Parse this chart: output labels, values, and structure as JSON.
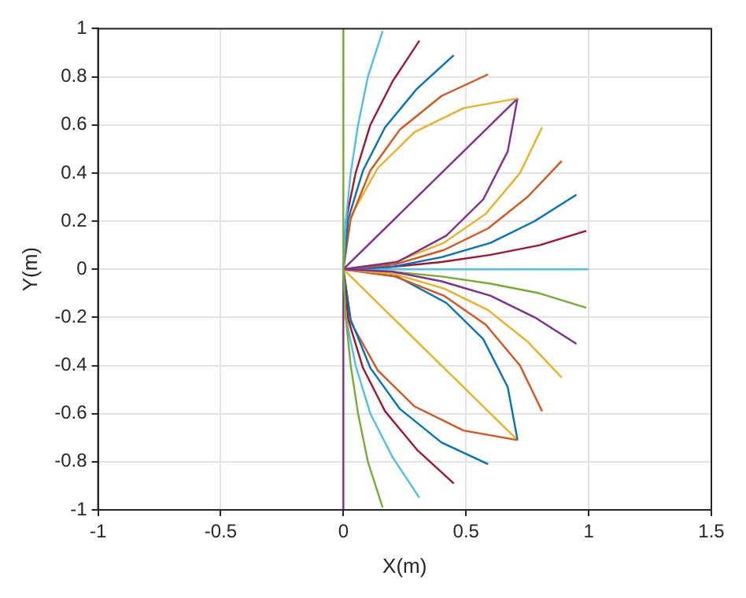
{
  "chart_data": {
    "type": "line",
    "xlabel": "X(m)",
    "ylabel": "Y(m)",
    "xlim": [
      -1,
      1.5
    ],
    "xticks": [
      -1,
      -0.5,
      0,
      0.5,
      1,
      1.5
    ],
    "ylim": [
      -1,
      1
    ],
    "yticks": [
      -1,
      -0.8,
      -0.6,
      -0.4,
      -0.2,
      0,
      0.2,
      0.4,
      0.6,
      0.8,
      1
    ],
    "grid": true,
    "legend": false,
    "marker": "none",
    "line_style": "solid",
    "series": [
      {
        "color": "#77ac30",
        "x": [
          0.16,
          0.1,
          0.06,
          0.03,
          0.01,
          0,
          0
        ],
        "values": [
          -0.99,
          -0.8,
          -0.6,
          -0.4,
          -0.2,
          0,
          1
        ]
      },
      {
        "color": "#4dbeee",
        "x": [
          0.31,
          0.2,
          0.11,
          0.05,
          0.01,
          0,
          0.01,
          0.03,
          0.06,
          0.1,
          0.16
        ],
        "values": [
          -0.95,
          -0.78,
          -0.6,
          -0.4,
          -0.2,
          0,
          0.2,
          0.4,
          0.6,
          0.8,
          0.99
        ]
      },
      {
        "color": "#a2142f",
        "x": [
          0.45,
          0.3,
          0.17,
          0.08,
          0.02,
          0,
          0.01,
          0.05,
          0.11,
          0.2,
          0.31
        ],
        "values": [
          -0.89,
          -0.75,
          -0.59,
          -0.41,
          -0.21,
          0,
          0.2,
          0.4,
          0.6,
          0.78,
          0.95
        ]
      },
      {
        "color": "#0072bd",
        "x": [
          0.59,
          0.4,
          0.23,
          0.11,
          0.03,
          0,
          0.02,
          0.08,
          0.17,
          0.3,
          0.45
        ],
        "values": [
          -0.81,
          -0.72,
          -0.58,
          -0.41,
          -0.21,
          0,
          0.21,
          0.41,
          0.59,
          0.75,
          0.89
        ]
      },
      {
        "color": "#d95319",
        "x": [
          0.71,
          0.49,
          0.29,
          0.14,
          0.03,
          0,
          0.03,
          0.11,
          0.23,
          0.4,
          0.59
        ],
        "values": [
          -0.71,
          -0.67,
          -0.57,
          -0.42,
          -0.22,
          0,
          0.21,
          0.41,
          0.58,
          0.72,
          0.81
        ]
      },
      {
        "color": "#edb120",
        "x": [
          0,
          0.03,
          0.14,
          0.29,
          0.49,
          0.71
        ],
        "values": [
          0,
          0.22,
          0.42,
          0.57,
          0.67,
          0.71
        ]
      },
      {
        "color": "#7e2f8e",
        "x": [
          0,
          0.71
        ],
        "values": [
          0,
          0.71
        ]
      },
      {
        "color": "#7e2f8e",
        "x": [
          0.95,
          0.78,
          0.6,
          0.4,
          0.2,
          0,
          0.22,
          0.42,
          0.57,
          0.67,
          0.71
        ],
        "values": [
          -0.31,
          -0.2,
          -0.11,
          -0.05,
          -0.01,
          0,
          0.03,
          0.14,
          0.29,
          0.49,
          0.71
        ]
      },
      {
        "color": "#edb120",
        "x": [
          0.89,
          0.75,
          0.59,
          0.41,
          0.21,
          0,
          0.21,
          0.41,
          0.58,
          0.72,
          0.81
        ],
        "values": [
          -0.45,
          -0.3,
          -0.17,
          -0.08,
          -0.02,
          0,
          0.03,
          0.11,
          0.23,
          0.4,
          0.59
        ]
      },
      {
        "color": "#d95319",
        "x": [
          0.81,
          0.72,
          0.58,
          0.41,
          0.21,
          0,
          0.21,
          0.41,
          0.59,
          0.75,
          0.89
        ],
        "values": [
          -0.59,
          -0.4,
          -0.23,
          -0.11,
          -0.03,
          0,
          0.02,
          0.08,
          0.17,
          0.3,
          0.45
        ]
      },
      {
        "color": "#0072bd",
        "x": [
          0.71,
          0.67,
          0.57,
          0.42,
          0.22,
          0,
          0.2,
          0.4,
          0.6,
          0.78,
          0.95
        ],
        "values": [
          -0.71,
          -0.49,
          -0.29,
          -0.14,
          -0.03,
          0,
          0.01,
          0.05,
          0.11,
          0.2,
          0.31
        ]
      },
      {
        "color": "#a2142f",
        "x": [
          0,
          0.2,
          0.4,
          0.6,
          0.8,
          0.99
        ],
        "values": [
          0,
          0.01,
          0.03,
          0.06,
          0.1,
          0.16
        ]
      },
      {
        "color": "#4dbeee",
        "x": [
          0,
          1
        ],
        "values": [
          0,
          0
        ]
      },
      {
        "color": "#77ac30",
        "x": [
          0,
          0.2,
          0.4,
          0.6,
          0.8,
          0.99
        ],
        "values": [
          0,
          -0.01,
          -0.03,
          -0.06,
          -0.1,
          -0.16
        ]
      },
      {
        "color": "#edb120",
        "x": [
          0,
          0.71
        ],
        "values": [
          0,
          -0.71
        ]
      },
      {
        "color": "#7e2f8e",
        "x": [
          0,
          0
        ],
        "values": [
          0,
          -1
        ]
      }
    ]
  }
}
